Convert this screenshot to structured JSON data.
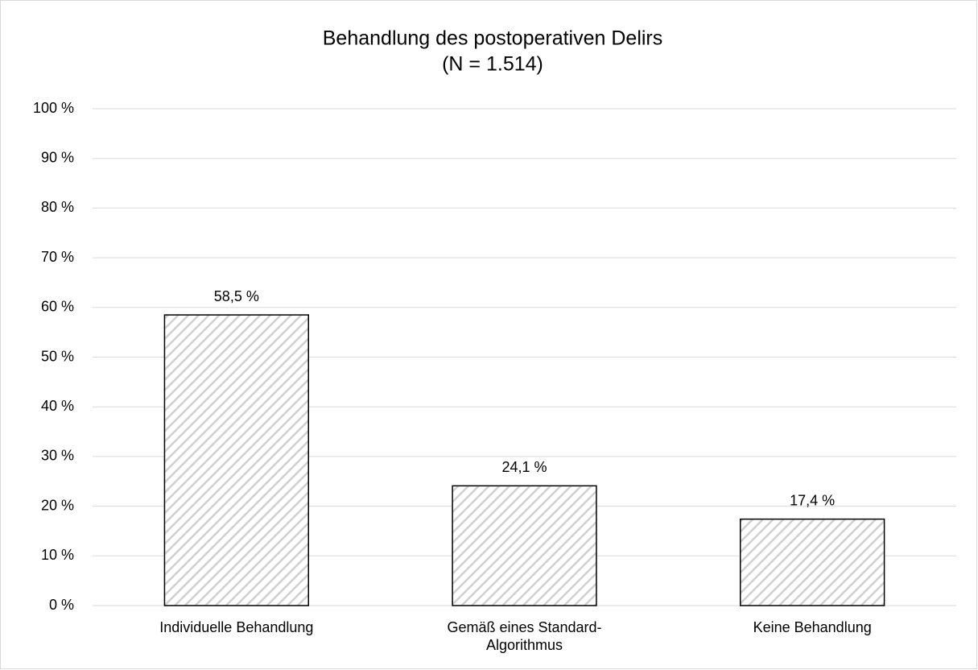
{
  "chart_data": {
    "type": "bar",
    "title": "Behandlung des postoperativen Delirs",
    "subtitle": "(N = 1.514)",
    "categories": [
      "Individuelle Behandlung",
      "Gemäß eines Standard-Algorithmus",
      "Keine Behandlung"
    ],
    "values": [
      58.5,
      24.1,
      17.4
    ],
    "value_labels": [
      "58,5 %",
      "24,1 %",
      "17,4 %"
    ],
    "color": "#d0d0d0",
    "ylim": [
      0,
      100
    ],
    "yticks": [
      {
        "value": 0,
        "label": "0 %"
      },
      {
        "value": 10,
        "label": "10 %"
      },
      {
        "value": 20,
        "label": "20 %"
      },
      {
        "value": 30,
        "label": "30 %"
      },
      {
        "value": 40,
        "label": "40 %"
      },
      {
        "value": 50,
        "label": "50 %"
      },
      {
        "value": 60,
        "label": "60 %"
      },
      {
        "value": 70,
        "label": "70 %"
      },
      {
        "value": 80,
        "label": "80 %"
      },
      {
        "value": 90,
        "label": "90 %"
      },
      {
        "value": 100,
        "label": "100 %"
      }
    ],
    "grid": true
  }
}
